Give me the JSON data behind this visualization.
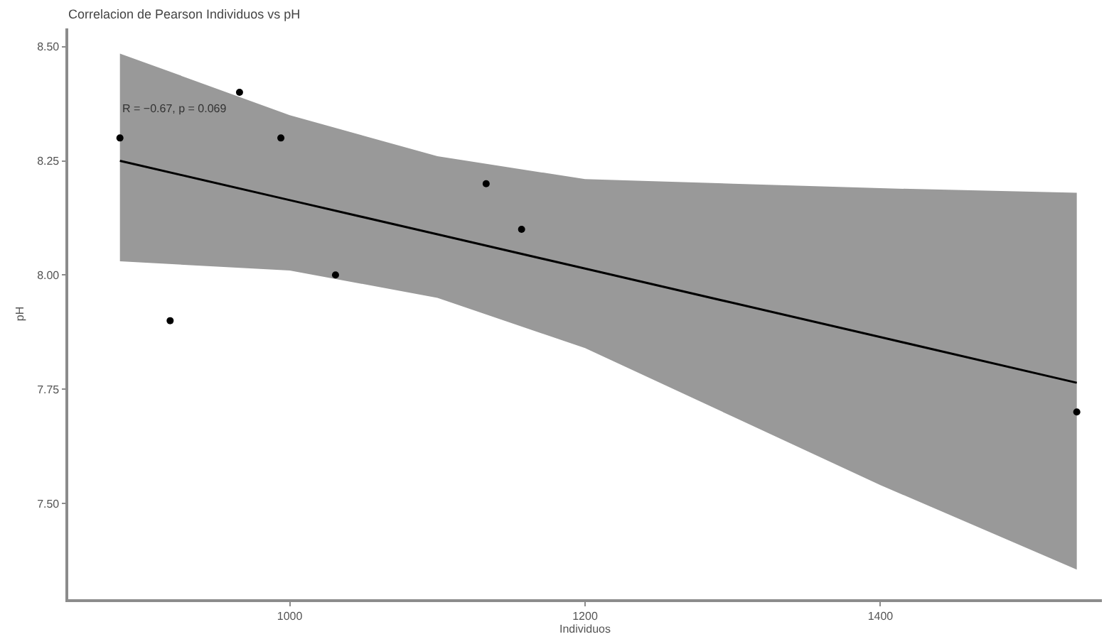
{
  "chart_data": {
    "type": "scatter",
    "title": "Correlacion de Pearson Individuos vs pH",
    "xlabel": "Individuos",
    "ylabel": "pH",
    "annotations": [
      "R = −0.67, p = 0.069"
    ],
    "series": [
      {
        "marker": "circle",
        "color": "#000000",
        "x": [
          885,
          919,
          966,
          994,
          1031,
          1133,
          1157,
          1533
        ],
        "values": [
          8.3,
          7.9,
          8.4,
          8.3,
          8.0,
          8.2,
          8.1,
          7.7
        ]
      },
      {
        "type": "line",
        "marker": "none",
        "color": "#000000",
        "x": [
          885,
          1000,
          1100,
          1200,
          1300,
          1400,
          1533
        ],
        "values": [
          8.25,
          8.164,
          8.089,
          8.014,
          7.939,
          7.864,
          7.764
        ],
        "lower": [
          8.03,
          8.01,
          7.95,
          7.84,
          7.69,
          7.54,
          7.355
        ],
        "upper": [
          8.485,
          8.35,
          8.26,
          8.21,
          8.2,
          8.19,
          8.18
        ]
      }
    ],
    "xlim": [
      850,
      1550
    ],
    "xticks": [
      1000,
      1200,
      1400
    ],
    "ylim": [
      7.29,
      8.54
    ],
    "yticks": [
      {
        "value": 7.5,
        "label": "7.50"
      },
      {
        "value": 7.75,
        "label": "7.75"
      },
      {
        "value": 8,
        "label": "8.00"
      },
      {
        "value": 8.25,
        "label": "8.25"
      },
      {
        "value": 8.5,
        "label": "8.50"
      }
    ],
    "grid": false,
    "line_style": "solid"
  }
}
